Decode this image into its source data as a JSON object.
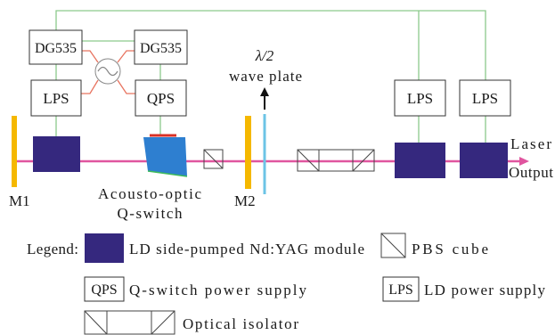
{
  "colors": {
    "beam": "#e0559f",
    "control_line": "#8cc98c",
    "rf_line": "#e8735f",
    "mirror": "#f5b800",
    "module": "#35287e",
    "q_switch": "#2e7fd0",
    "q_switch_top": "#d93025",
    "q_switch_bottom": "#3dbb5a",
    "wave_plate": "#6cc4e6"
  },
  "icons": {
    "ac_source": "ac-sine-source-icon",
    "polarization_arrow": "arrow-up-icon",
    "output_arrow": "arrow-right-icon"
  },
  "diagram": {
    "dg535_left": "DG535",
    "dg535_right": "DG535",
    "lps_left": "LPS",
    "qps": "QPS",
    "lps_middle": "LPS",
    "lps_right": "LPS",
    "mirror_1": "M1",
    "mirror_2": "M2",
    "q_switch_label_line1": "Acousto-optic",
    "q_switch_label_line2": "Q-switch",
    "wave_plate_label_line1": "λ/2",
    "wave_plate_label_line2": "wave plate",
    "output_label_line1": "Laser",
    "output_label_line2": "Output"
  },
  "legend": {
    "title": "Legend:",
    "module_label": "LD side-pumped Nd:YAG module",
    "pbs_label": "PBS cube",
    "qps_abbr": "QPS",
    "qps_label": "Q-switch power supply",
    "lps_abbr": "LPS",
    "lps_label": "LD power supply",
    "isolator_label": "Optical isolator"
  }
}
